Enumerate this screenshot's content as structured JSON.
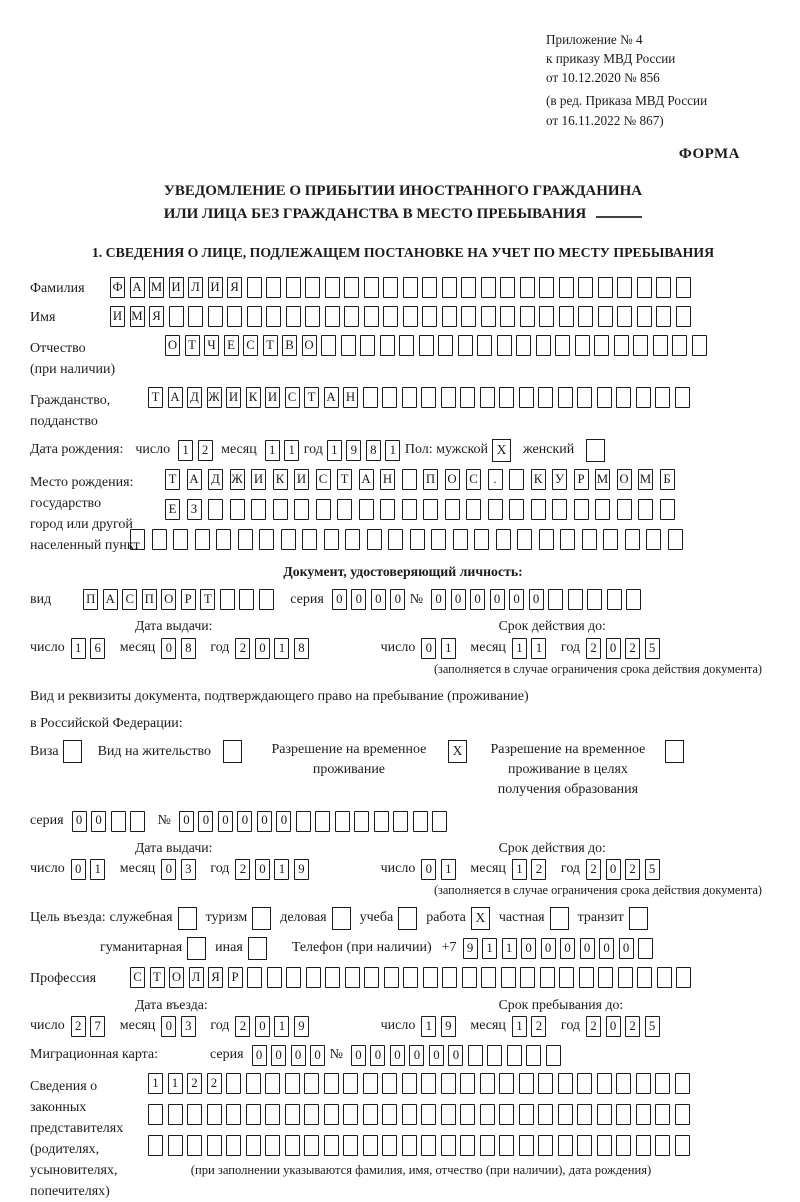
{
  "header": {
    "lines": [
      "Приложение № 4",
      "к приказу МВД России",
      "от 10.12.2020 № 856",
      "(в ред. Приказа МВД России",
      "от 16.11.2022 № 867)"
    ],
    "form_label": "ФОРМА"
  },
  "title": {
    "line1": "УВЕДОМЛЕНИЕ О ПРИБЫТИИ ИНОСТРАННОГО ГРАЖДАНИНА",
    "line2": "ИЛИ ЛИЦА БЕЗ ГРАЖДАНСТВА В МЕСТО ПРЕБЫВАНИЯ"
  },
  "section1_heading": "1. СВЕДЕНИЯ О ЛИЦЕ, ПОДЛЕЖАЩЕМ ПОСТАНОВКЕ НА УЧЕТ ПО МЕСТУ ПРЕБЫВАНИЯ",
  "date_labels": {
    "day": "число",
    "month": "месяц",
    "year": "год"
  },
  "fields": {
    "surname": {
      "label": "Фамилия",
      "value": "ФАМИЛИЯ",
      "length": 30
    },
    "name": {
      "label": "Имя",
      "value": "ИМЯ",
      "length": 30
    },
    "patronymic": {
      "label": "Отчество",
      "label2": "(при наличии)",
      "value": "ОТЧЕСТВО",
      "length": 28
    },
    "citizenship": {
      "label": "Гражданство,",
      "label2": "подданство",
      "value": "ТАДЖИКИСТАН",
      "length": 28
    },
    "birth_date": {
      "label": "Дата рождения:",
      "day": "12",
      "month": "11",
      "year": "1981",
      "sex_label": "Пол: мужской",
      "sex_male": "X",
      "sex_female_label": "женский",
      "sex_female": ""
    },
    "birth_place": {
      "label_lines": [
        "Место рождения:",
        "государство",
        "город или другой",
        "населенный пункт"
      ],
      "row1": {
        "value": "ТАДЖИКИСТАН ПОС. КУРМОМБ",
        "length": 24
      },
      "row2": {
        "value": "ЕЗ",
        "length": 24
      },
      "row3": {
        "value": "",
        "length": 26
      }
    },
    "identity_doc": {
      "heading": "Документ, удостоверяющий личность:",
      "kind_label": "вид",
      "kind": {
        "value": "ПАСПОРТ",
        "length": 10
      },
      "series_label": "серия",
      "series": {
        "value": "0000",
        "length": 4
      },
      "number_label": "№",
      "number": {
        "value": "000000",
        "length": 11
      },
      "issue": {
        "heading": "Дата выдачи:",
        "day": "16",
        "month": "08",
        "year": "2018"
      },
      "valid": {
        "heading": "Срок действия до:",
        "day": "01",
        "month": "11",
        "year": "2025"
      },
      "note": "(заполняется в случае ограничения срока действия документа)"
    },
    "residence_doc": {
      "line1": "Вид и реквизиты документа, подтверждающего право на пребывание (проживание)",
      "line2": "в Российской Федерации:",
      "options": [
        {
          "label": "Виза",
          "checked": ""
        },
        {
          "label": "Вид на жительство",
          "checked": ""
        },
        {
          "label": "Разрешение на временное проживание",
          "checked": "X"
        },
        {
          "label": "Разрешение на временное проживание в целях получения образования",
          "checked": ""
        }
      ],
      "series_label": "серия",
      "series": {
        "value": "00",
        "length": 4
      },
      "number_label": "№",
      "number": {
        "value": "000000",
        "length": 14
      },
      "issue": {
        "heading": "Дата выдачи:",
        "day": "01",
        "month": "03",
        "year": "2019"
      },
      "valid": {
        "heading": "Срок действия до:",
        "day": "01",
        "month": "12",
        "year": "2025"
      },
      "note": "(заполняется в случае ограничения срока действия документа)"
    },
    "visit_purpose": {
      "label": "Цель въезда:",
      "options": [
        {
          "label": "служебная",
          "checked": ""
        },
        {
          "label": "туризм",
          "checked": ""
        },
        {
          "label": "деловая",
          "checked": ""
        },
        {
          "label": "учеба",
          "checked": ""
        },
        {
          "label": "работа",
          "checked": "X"
        },
        {
          "label": "частная",
          "checked": ""
        },
        {
          "label": "транзит",
          "checked": ""
        }
      ],
      "options2": [
        {
          "label": "гуманитарная",
          "checked": ""
        },
        {
          "label": "иная",
          "checked": ""
        }
      ],
      "phone_label": "Телефон (при наличии)",
      "phone_prefix": "+7",
      "phone": {
        "value": "911000000",
        "length": 10
      }
    },
    "profession": {
      "label": "Профессия",
      "value": "СТОЛЯР",
      "length": 29
    },
    "entry_dates": {
      "issue": {
        "heading": "Дата въезда:",
        "day": "27",
        "month": "03",
        "year": "2019"
      },
      "valid": {
        "heading": "Срок пребывания до:",
        "day": "19",
        "month": "12",
        "year": "2025"
      }
    },
    "migration_card": {
      "label": "Миграционная карта:",
      "series_label": "серия",
      "series": {
        "value": "0000",
        "length": 4
      },
      "number_label": "№",
      "number": {
        "value": "000000",
        "length": 11
      }
    },
    "representatives": {
      "label_lines": [
        "Сведения о",
        "законных",
        "представителях",
        "(родителях,",
        "усыновителях,",
        "попечителях)"
      ],
      "row1": {
        "value": "1122",
        "length": 28
      },
      "row2": {
        "value": "",
        "length": 28
      },
      "row3": {
        "value": "",
        "length": 28
      },
      "note": "(при заполнении указываются фамилия, имя, отчество (при наличии), дата рождения)"
    }
  }
}
